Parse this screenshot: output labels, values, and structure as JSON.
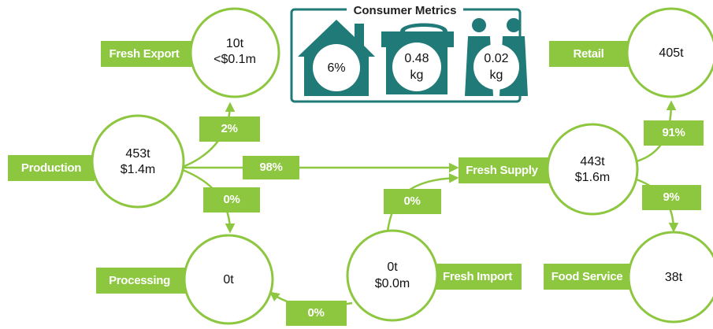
{
  "consumer_metrics": {
    "title": "Consumer Metrics",
    "items": [
      [
        "6%"
      ],
      [
        "0.48",
        "kg"
      ],
      [
        "0.02",
        "kg"
      ]
    ]
  },
  "nodes": [
    {
      "label": "Production",
      "lines": [
        "453t",
        "$1.4m"
      ]
    },
    {
      "label": "Fresh Export",
      "lines": [
        "10t",
        "<$0.1m"
      ]
    },
    {
      "label": "Processing",
      "lines": [
        "0t"
      ]
    },
    {
      "label": "Fresh Import",
      "lines": [
        "0t",
        "$0.0m"
      ]
    },
    {
      "label": "Fresh Supply",
      "lines": [
        "443t",
        "$1.6m"
      ]
    },
    {
      "label": "Retail",
      "lines": [
        "405t"
      ]
    },
    {
      "label": "Food Service",
      "lines": [
        "38t"
      ]
    }
  ],
  "flows": [
    "2%",
    "98%",
    "0%",
    "0%",
    "0%",
    "91%",
    "9%"
  ]
}
